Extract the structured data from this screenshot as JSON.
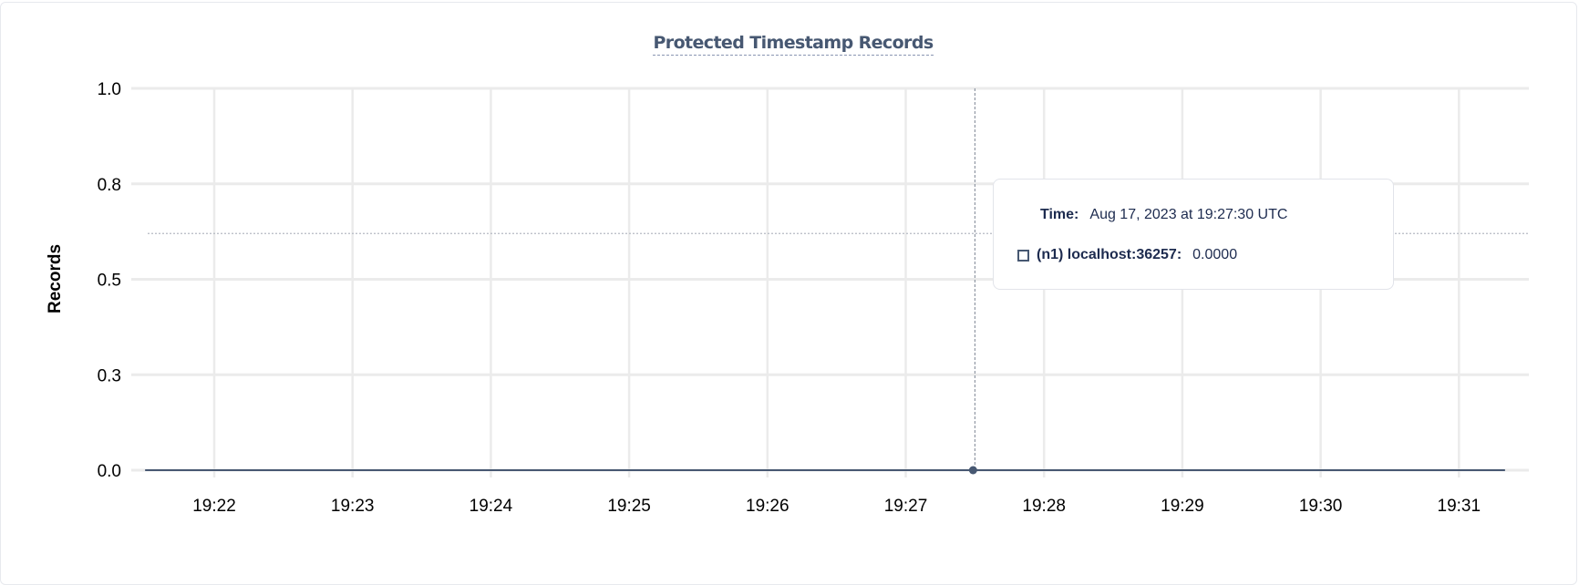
{
  "chart_data": {
    "type": "line",
    "title": "Protected Timestamp Records",
    "ylabel": "Records",
    "xlabel": "",
    "ylim": [
      0,
      1
    ],
    "y_ticks": [
      {
        "value": 1.0,
        "label": "1.0"
      },
      {
        "value": 0.75,
        "label": "0.8"
      },
      {
        "value": 0.5,
        "label": "0.5"
      },
      {
        "value": 0.25,
        "label": "0.3"
      },
      {
        "value": 0.0,
        "label": "0.0"
      }
    ],
    "x_range": [
      "19:21:30",
      "19:31:20"
    ],
    "x_ticks": [
      "19:22",
      "19:23",
      "19:24",
      "19:25",
      "19:26",
      "19:27",
      "19:28",
      "19:29",
      "19:30",
      "19:31"
    ],
    "grid": true,
    "series": [
      {
        "name": "(n1) localhost:36257",
        "color": "#475872",
        "x": [
          "19:21:30",
          "19:22:00",
          "19:23:00",
          "19:24:00",
          "19:25:00",
          "19:26:00",
          "19:27:00",
          "19:27:30",
          "19:28:00",
          "19:29:00",
          "19:30:00",
          "19:31:00",
          "19:31:20"
        ],
        "y": [
          0,
          0,
          0,
          0,
          0,
          0,
          0,
          0,
          0,
          0,
          0,
          0,
          0
        ]
      }
    ],
    "hover": {
      "x": "19:27:30",
      "y": 0.0,
      "cursor_y": 0.62
    },
    "tooltip": {
      "time_label": "Time:",
      "time_value": "Aug 17, 2023 at 19:27:30 UTC",
      "series_label": "(n1) localhost:36257:",
      "series_value": "0.0000"
    }
  }
}
